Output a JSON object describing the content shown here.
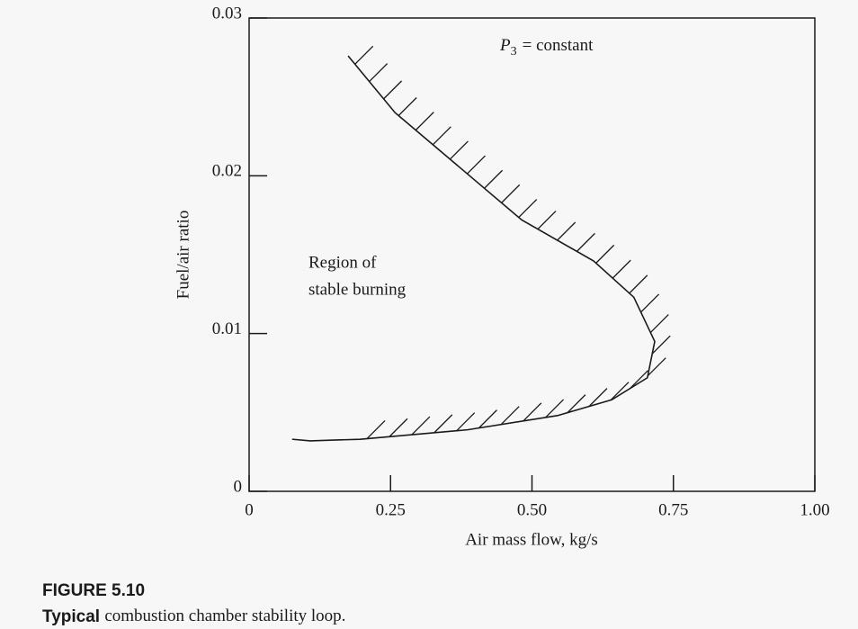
{
  "chart_data": {
    "type": "line",
    "x_label": "Air mass flow, kg/s",
    "y_label": "Fuel/air ratio",
    "x": [
      0.175,
      0.258,
      0.37,
      0.482,
      0.609,
      0.68,
      0.717,
      0.704,
      0.641,
      0.545,
      0.386,
      0.196,
      0.108,
      0.076
    ],
    "values": [
      0.0276,
      0.024,
      0.0206,
      0.0172,
      0.0146,
      0.0123,
      0.0095,
      0.0072,
      0.0058,
      0.0048,
      0.0039,
      0.0033,
      0.0032,
      0.0033
    ],
    "color": "#1a1a1a",
    "xlim": [
      0,
      1
    ],
    "xticks": [
      0,
      0.25,
      {
        "value": 0.5,
        "label": "0.50"
      },
      0.75,
      {
        "value": 1,
        "label": "1.00"
      }
    ],
    "ylim": [
      0,
      0.03
    ],
    "yticks": [
      0,
      0.01,
      0.02,
      0.03
    ],
    "grid": false,
    "annotation_pressure": {
      "symbol": "P",
      "subscript": "3",
      "text": "= constant"
    },
    "annotation_region": [
      "Region of",
      "stable burning"
    ]
  },
  "caption": {
    "label": "FIGURE 5.10",
    "lead": "Typical",
    "text": "combustion chamber stability loop."
  }
}
